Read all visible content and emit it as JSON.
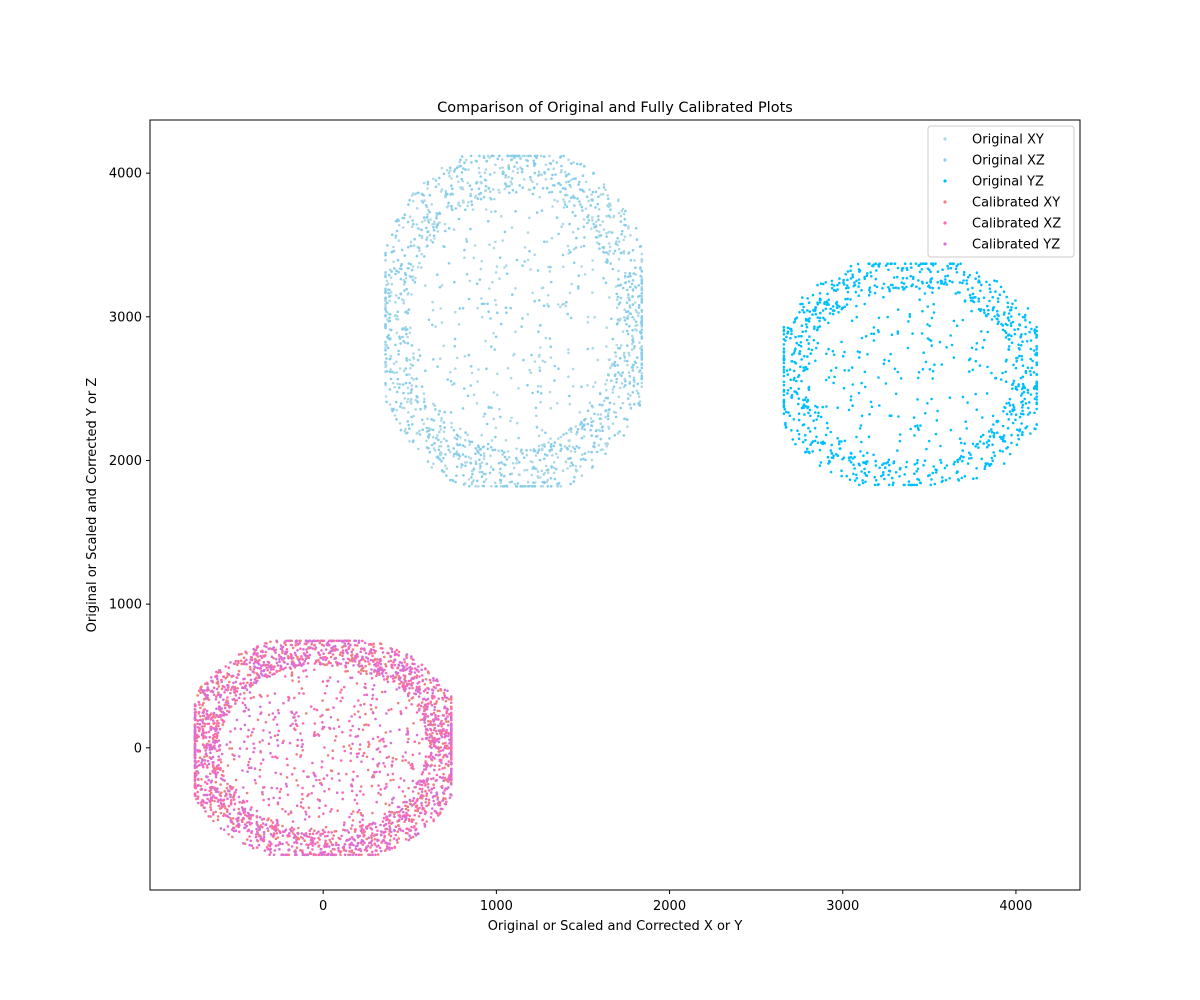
{
  "chart_data": {
    "type": "scatter",
    "title": "Comparison of Original and Fully Calibrated Plots",
    "xlabel": "Original or Scaled and Corrected X or Y",
    "ylabel": "Original or Scaled and Corrected Y or Z",
    "xlim": [
      -1000,
      4370
    ],
    "ylim": [
      -990,
      4370
    ],
    "xticks": [
      0,
      1000,
      2000,
      3000,
      4000
    ],
    "yticks": [
      0,
      1000,
      2000,
      3000,
      4000
    ],
    "grid": false,
    "legend_position": "top-right",
    "series": [
      {
        "name": "Original XY",
        "color": "#ADD8E6",
        "cluster": {
          "cx": 1100,
          "cy": 2970,
          "rx": 740,
          "ry": 1150
        },
        "count": 900
      },
      {
        "name": "Original XZ",
        "color": "#87CEEB",
        "cluster": {
          "cx": 1100,
          "cy": 2970,
          "rx": 740,
          "ry": 1150
        },
        "count": 900
      },
      {
        "name": "Original YZ",
        "color": "#00BFFF",
        "cluster": {
          "cx": 3390,
          "cy": 2600,
          "rx": 730,
          "ry": 770
        },
        "count": 1100
      },
      {
        "name": "Calibrated XY",
        "color": "#F08080",
        "cluster": {
          "cx": 0,
          "cy": 0,
          "rx": 740,
          "ry": 745
        },
        "count": 900
      },
      {
        "name": "Calibrated XZ",
        "color": "#FF69B4",
        "cluster": {
          "cx": 0,
          "cy": 0,
          "rx": 740,
          "ry": 745
        },
        "count": 900
      },
      {
        "name": "Calibrated YZ",
        "color": "#DA70D6",
        "cluster": {
          "cx": 0,
          "cy": 0,
          "rx": 740,
          "ry": 745
        },
        "count": 1100
      }
    ]
  }
}
